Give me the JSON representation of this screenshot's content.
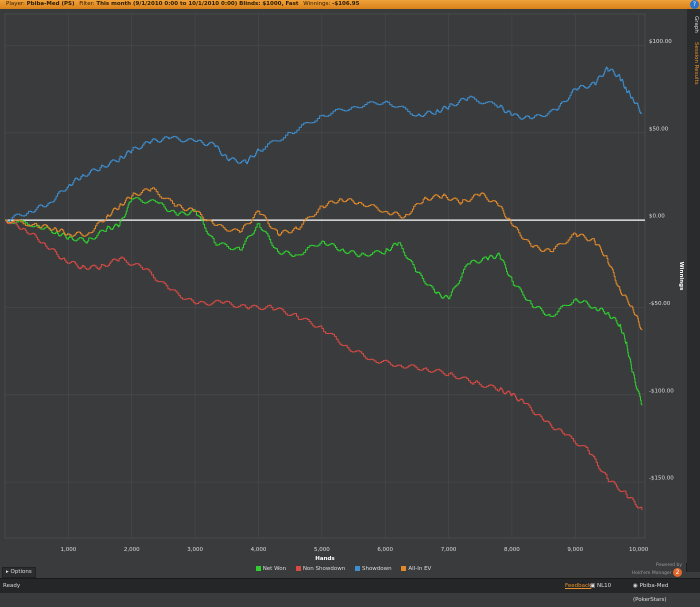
{
  "header": {
    "player_label": "Player:",
    "player": "Pbiba-Med (PS)",
    "filter_label": "Filter:",
    "filter": "This month (9/1/2010 0:00 to 10/1/2010 0:00) Blinds: $1000, Fast",
    "winnings_label": "Winnings:",
    "winnings": "-$106.95"
  },
  "side_tabs": [
    "Graph",
    "Session Results"
  ],
  "options_label": "Options",
  "status": {
    "ready": "Ready",
    "feedback": "Feedback",
    "nl": "NL10",
    "player": "Pbiba-Med (PokerStars)"
  },
  "powered": {
    "line1": "Powered by",
    "line2": "Hold'em Manager",
    "logo": "2"
  },
  "colors": {
    "net_won": "#2fcf2f",
    "non_showdown": "#d84a44",
    "showdown": "#3e8fd0",
    "allin_ev": "#e0892a",
    "zero": "#ffffff"
  },
  "chart_data": {
    "type": "line",
    "xlabel": "Hands",
    "ylabel": "Winnings",
    "xlim": [
      0,
      10100
    ],
    "ylim": [
      -182,
      118
    ],
    "x_ticks": [
      1000,
      2000,
      3000,
      4000,
      5000,
      6000,
      7000,
      8000,
      9000,
      10000
    ],
    "x_tick_labels": [
      "1,000",
      "2,000",
      "3,000",
      "4,000",
      "5,000",
      "6,000",
      "7,000",
      "8,000",
      "9,000",
      "10,000"
    ],
    "y_ticks": [
      100,
      50,
      0,
      -50,
      -100,
      -150
    ],
    "y_tick_labels": [
      "$100.00",
      "$50.00",
      "$0.00",
      "-$50.00",
      "-$100.00",
      "-$150.00"
    ],
    "grid": true,
    "legend": "bottom-center",
    "series": [
      {
        "name": "Net Won",
        "color": "#2fcf2f",
        "x": [
          0,
          500,
          800,
          1000,
          1300,
          1600,
          1800,
          2000,
          2400,
          2700,
          3000,
          3300,
          3700,
          4000,
          4300,
          4600,
          5000,
          5300,
          5600,
          6000,
          6200,
          6500,
          6800,
          7000,
          7300,
          7600,
          7800,
          8000,
          8300,
          8600,
          9000,
          9300,
          9500,
          9700,
          9800,
          9900,
          10050
        ],
        "y": [
          0,
          -3,
          -7,
          -10,
          -12,
          -5,
          -3,
          12,
          10,
          3,
          5,
          -13,
          -17,
          -2,
          -18,
          -20,
          -12,
          -17,
          -20,
          -18,
          -13,
          -30,
          -42,
          -45,
          -25,
          -22,
          -20,
          -35,
          -48,
          -55,
          -45,
          -50,
          -53,
          -60,
          -70,
          -87,
          -106
        ]
      },
      {
        "name": "Non Showdown",
        "color": "#d84a44",
        "x": [
          0,
          300,
          600,
          900,
          1200,
          1500,
          1800,
          2200,
          2600,
          3000,
          3400,
          3800,
          4200,
          4600,
          5000,
          5400,
          5800,
          6200,
          6600,
          7000,
          7400,
          7800,
          8000,
          8200,
          8500,
          8800,
          9200,
          9500,
          9800,
          10050
        ],
        "y": [
          0,
          -5,
          -13,
          -22,
          -27,
          -27,
          -22,
          -28,
          -40,
          -48,
          -47,
          -50,
          -50,
          -55,
          -62,
          -73,
          -80,
          -83,
          -85,
          -88,
          -93,
          -97,
          -100,
          -105,
          -115,
          -122,
          -132,
          -148,
          -157,
          -166
        ]
      },
      {
        "name": "Showdown",
        "color": "#3e8fd0",
        "x": [
          0,
          400,
          700,
          1000,
          1200,
          1500,
          1800,
          2000,
          2300,
          2600,
          3000,
          3300,
          3500,
          3800,
          4000,
          4500,
          5000,
          5500,
          6000,
          6500,
          6800,
          7000,
          7300,
          7800,
          8000,
          8300,
          8700,
          9000,
          9300,
          9500,
          9700,
          9800,
          9900,
          10050
        ],
        "y": [
          0,
          5,
          10,
          20,
          25,
          30,
          35,
          40,
          45,
          47,
          45,
          43,
          35,
          33,
          40,
          50,
          60,
          65,
          68,
          60,
          62,
          65,
          70,
          65,
          60,
          58,
          63,
          75,
          78,
          87,
          82,
          75,
          70,
          61
        ]
      },
      {
        "name": "All-In EV",
        "color": "#e0892a",
        "x": [
          0,
          500,
          800,
          1000,
          1300,
          1600,
          1800,
          2000,
          2300,
          2700,
          3000,
          3300,
          3700,
          4000,
          4300,
          4600,
          5000,
          5300,
          5600,
          6000,
          6300,
          6600,
          6900,
          7200,
          7500,
          7800,
          8000,
          8300,
          8600,
          9000,
          9300,
          9500,
          9700,
          9900,
          10050
        ],
        "y": [
          0,
          -3,
          -5,
          -8,
          -8,
          2,
          8,
          14,
          18,
          8,
          5,
          -3,
          -7,
          5,
          -8,
          -5,
          8,
          12,
          10,
          5,
          2,
          12,
          14,
          10,
          15,
          8,
          -3,
          -15,
          -18,
          -8,
          -12,
          -22,
          -40,
          -50,
          -63
        ]
      }
    ]
  }
}
